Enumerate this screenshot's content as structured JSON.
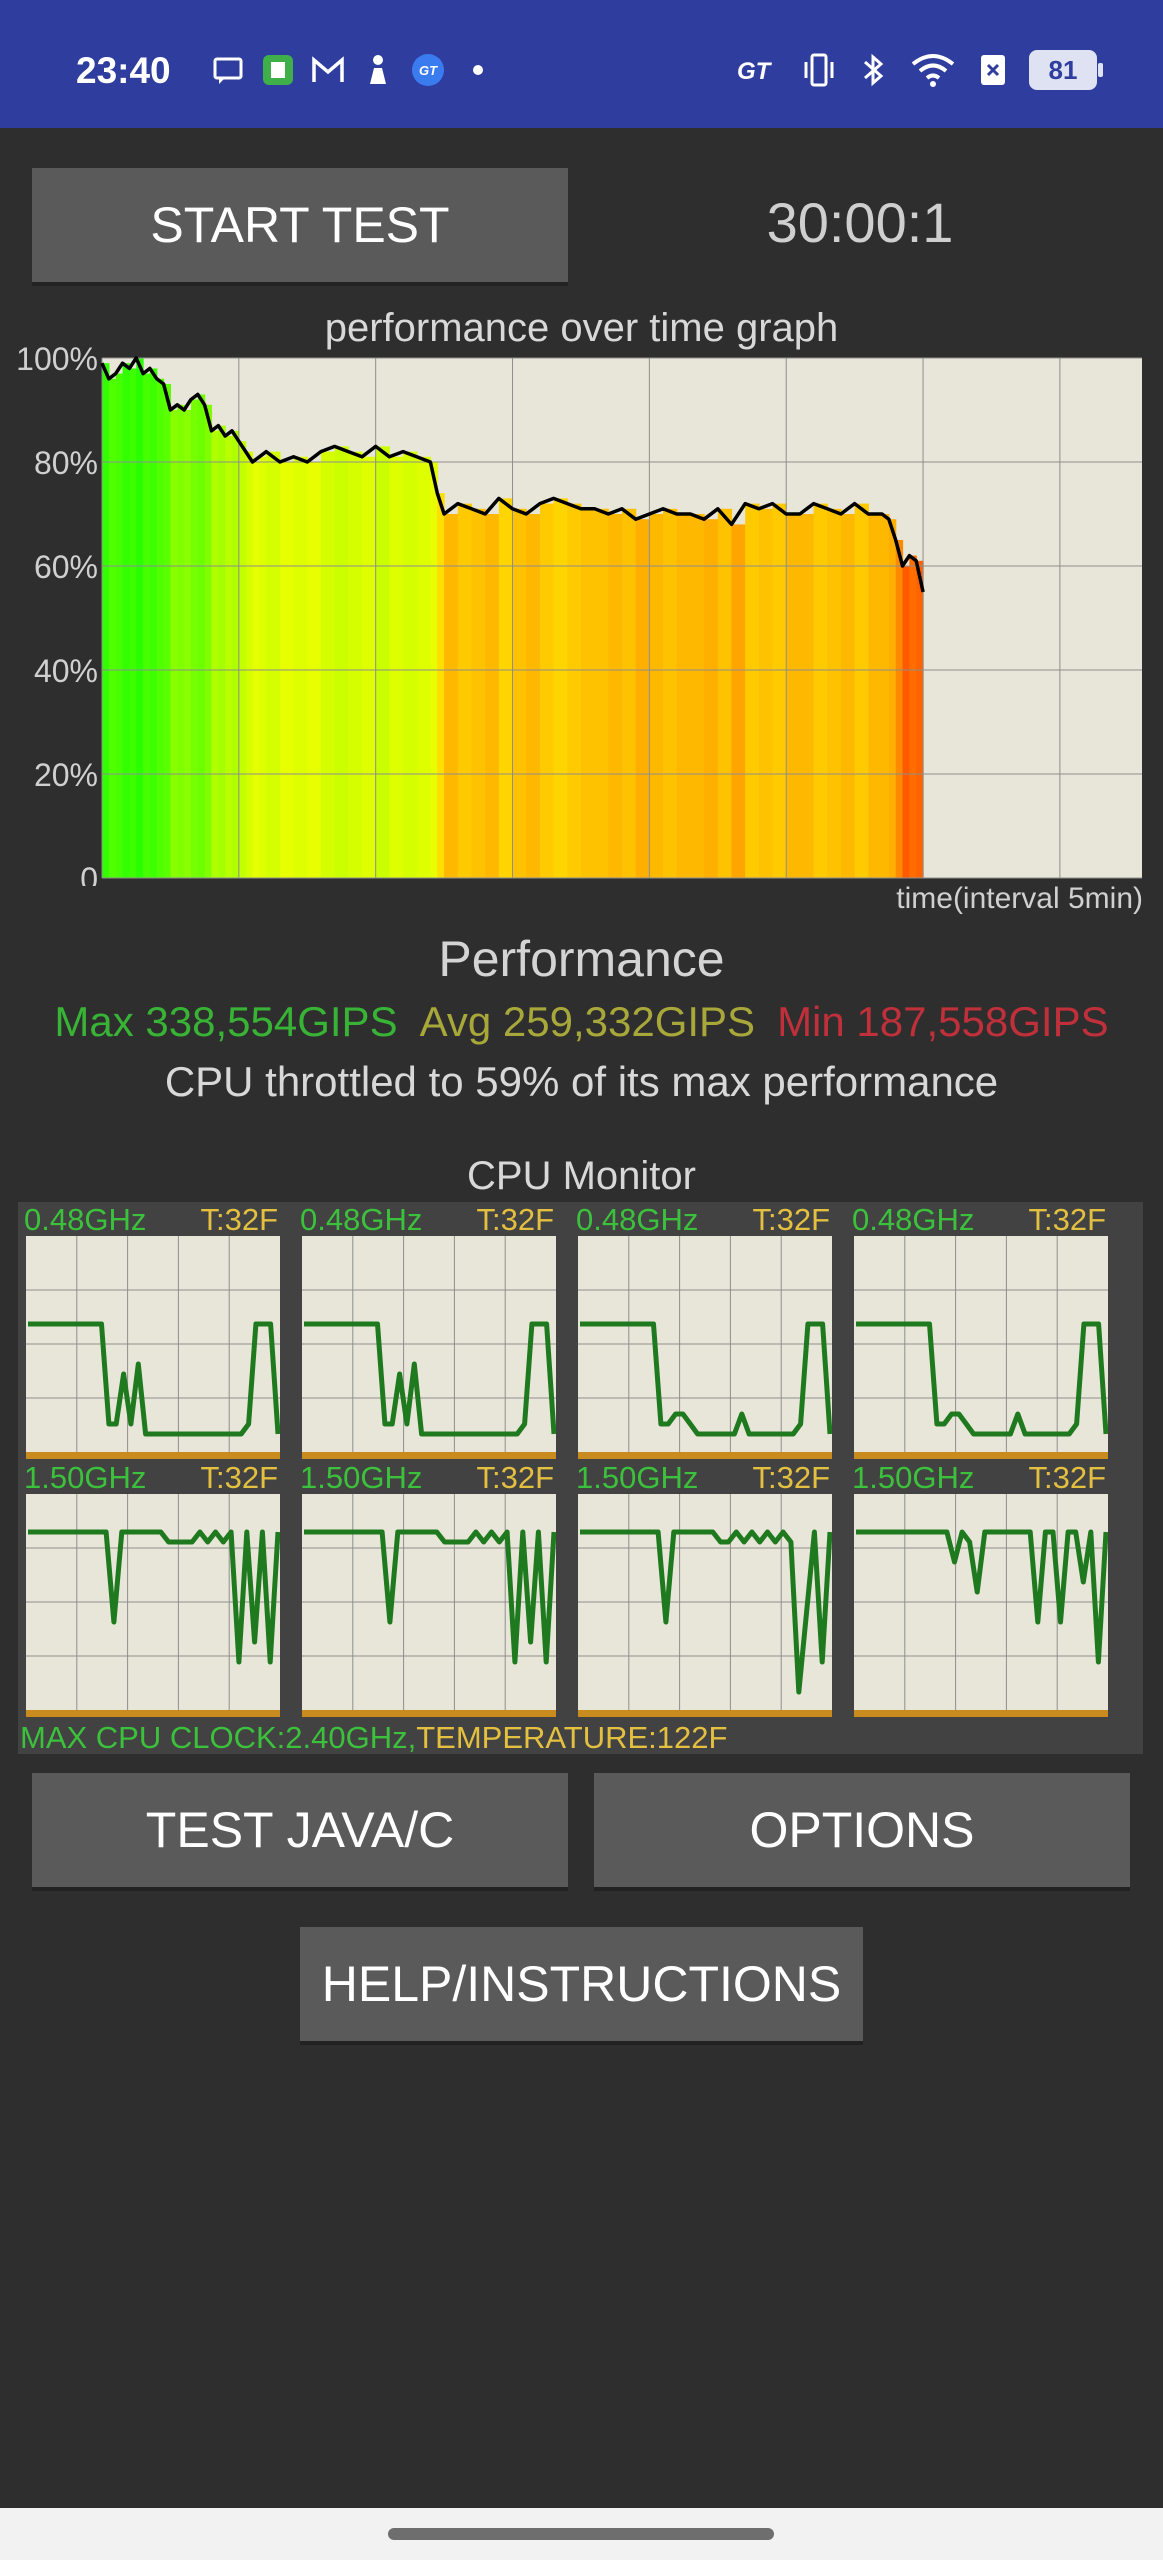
{
  "status_bar": {
    "time": "23:40",
    "left_icons": [
      "message-icon",
      "app-icon",
      "gmail-icon",
      "figure-icon",
      "gt-badge-icon",
      "dot-icon"
    ],
    "right_icons": [
      "gt-icon",
      "vibrate-icon",
      "bluetooth-icon",
      "wifi-icon",
      "sim-icon"
    ],
    "battery": "81"
  },
  "controls": {
    "start_label": "START TEST",
    "timer": "30:00:1",
    "test_java_label": "TEST JAVA/C",
    "options_label": "OPTIONS",
    "help_label": "HELP/INSTRUCTIONS"
  },
  "graph": {
    "title": "performance over time graph",
    "x_note": "time(interval 5min)"
  },
  "chart_data": {
    "type": "line",
    "title": "performance over time graph",
    "xlabel": "time(interval 5min)",
    "ylabel": "",
    "y_tick_labels": [
      "100%",
      "80%",
      "60%",
      "40%",
      "20%",
      "0"
    ],
    "ylim": [
      0,
      100
    ],
    "x_range_minutes": [
      0,
      38
    ],
    "grid": true,
    "series": [
      {
        "x": [
          0,
          0.25,
          0.5,
          0.75,
          1,
          1.25,
          1.5,
          1.75,
          2,
          2.25,
          2.5,
          2.75,
          3,
          3.25,
          3.5,
          3.75,
          4,
          4.25,
          4.5,
          4.75,
          5,
          5.25,
          5.5,
          5.75,
          6,
          6.5,
          7,
          7.5,
          8,
          8.5,
          9,
          9.5,
          10,
          10.5,
          11,
          11.5,
          12,
          12.25,
          12.5,
          13,
          13.5,
          14,
          14.5,
          15,
          15.5,
          16,
          16.5,
          17,
          17.5,
          18,
          18.5,
          19,
          19.5,
          20,
          20.5,
          21,
          21.5,
          22,
          22.5,
          23,
          23.5,
          24,
          24.5,
          25,
          25.5,
          26,
          26.5,
          27,
          27.5,
          28,
          28.5,
          28.75,
          29,
          29.25,
          29.5,
          29.75,
          30
        ],
        "y": [
          99,
          96,
          97,
          99,
          98,
          100,
          97,
          98,
          96,
          95,
          90,
          91,
          90,
          92,
          93,
          91,
          86,
          87,
          85,
          86,
          84,
          82,
          80,
          81,
          82,
          80,
          81,
          80,
          82,
          83,
          82,
          81,
          83,
          81,
          82,
          81,
          80,
          74,
          70,
          72,
          71,
          70,
          73,
          71,
          70,
          72,
          73,
          72,
          71,
          71,
          70,
          71,
          69,
          70,
          71,
          70,
          70,
          69,
          71,
          68,
          72,
          71,
          72,
          70,
          70,
          72,
          71,
          70,
          72,
          70,
          70,
          69,
          65,
          60,
          62,
          61,
          55
        ]
      }
    ]
  },
  "performance": {
    "heading": "Performance",
    "max": "Max 338,554GIPS",
    "avg": "Avg 259,332GIPS",
    "min": "Min 187,558GIPS",
    "throttle": "CPU throttled to 59% of its max performance"
  },
  "cpu_monitor": {
    "title": "CPU Monitor",
    "cores": [
      {
        "freq": "0.48GHz",
        "temp": "T:32F",
        "trace": [
          60,
          60,
          60,
          60,
          60,
          60,
          60,
          60,
          60,
          60,
          60,
          10,
          10,
          35,
          10,
          40,
          5,
          5,
          5,
          5,
          5,
          5,
          5,
          5,
          5,
          5,
          5,
          5,
          5,
          5,
          10,
          60,
          60,
          60,
          5
        ]
      },
      {
        "freq": "0.48GHz",
        "temp": "T:32F",
        "trace": [
          60,
          60,
          60,
          60,
          60,
          60,
          60,
          60,
          60,
          60,
          60,
          10,
          10,
          35,
          10,
          40,
          5,
          5,
          5,
          5,
          5,
          5,
          5,
          5,
          5,
          5,
          5,
          5,
          5,
          5,
          10,
          60,
          60,
          60,
          5
        ]
      },
      {
        "freq": "0.48GHz",
        "temp": "T:32F",
        "trace": [
          60,
          60,
          60,
          60,
          60,
          60,
          60,
          60,
          60,
          60,
          60,
          10,
          10,
          15,
          15,
          10,
          5,
          5,
          5,
          5,
          5,
          5,
          15,
          5,
          5,
          5,
          5,
          5,
          5,
          5,
          10,
          60,
          60,
          60,
          5
        ]
      },
      {
        "freq": "0.48GHz",
        "temp": "T:32F",
        "trace": [
          60,
          60,
          60,
          60,
          60,
          60,
          60,
          60,
          60,
          60,
          60,
          10,
          10,
          15,
          15,
          10,
          5,
          5,
          5,
          5,
          5,
          5,
          15,
          5,
          5,
          5,
          5,
          5,
          5,
          5,
          10,
          60,
          60,
          60,
          5
        ]
      },
      {
        "freq": "1.50GHz",
        "temp": "T:32F",
        "trace": [
          85,
          85,
          85,
          85,
          85,
          85,
          85,
          85,
          85,
          85,
          85,
          40,
          85,
          85,
          85,
          85,
          85,
          85,
          80,
          80,
          80,
          80,
          85,
          80,
          85,
          80,
          85,
          20,
          85,
          30,
          85,
          20,
          85
        ]
      },
      {
        "freq": "1.50GHz",
        "temp": "T:32F",
        "trace": [
          85,
          85,
          85,
          85,
          85,
          85,
          85,
          85,
          85,
          85,
          85,
          40,
          85,
          85,
          85,
          85,
          85,
          85,
          80,
          80,
          80,
          80,
          85,
          80,
          85,
          80,
          85,
          20,
          85,
          30,
          85,
          20,
          85
        ]
      },
      {
        "freq": "1.50GHz",
        "temp": "T:32F",
        "trace": [
          85,
          85,
          85,
          85,
          85,
          85,
          85,
          85,
          85,
          85,
          85,
          40,
          85,
          85,
          85,
          85,
          85,
          85,
          80,
          80,
          85,
          80,
          85,
          80,
          85,
          80,
          85,
          80,
          5,
          45,
          85,
          20,
          85
        ]
      },
      {
        "freq": "1.50GHz",
        "temp": "T:32F",
        "trace": [
          85,
          85,
          85,
          85,
          85,
          85,
          85,
          85,
          85,
          85,
          85,
          85,
          85,
          70,
          85,
          80,
          55,
          85,
          85,
          85,
          85,
          85,
          85,
          85,
          40,
          85,
          85,
          40,
          85,
          85,
          60,
          85,
          20,
          85
        ]
      }
    ],
    "footer_clock": "MAX CPU CLOCK:2.40GHz,",
    "footer_temp": "TEMPERATURE:122F"
  },
  "colors": {
    "status_bar": "#2f3e9e",
    "background": "#2e2e2e",
    "button": "#5a5a5a",
    "graph_bg": "#e8e6d8",
    "trace_green": "#1f7a1f"
  }
}
